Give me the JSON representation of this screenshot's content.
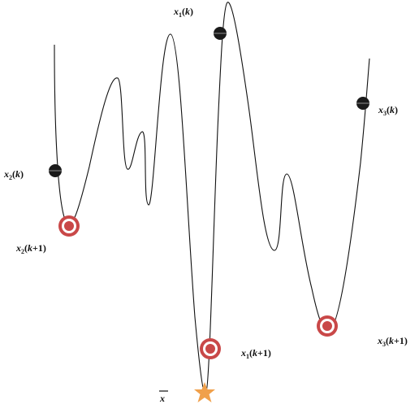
{
  "colors": {
    "curve": "#111111",
    "current_point": "#1a1a1a",
    "target_ring": "#c94848",
    "minimum_star": "#f0a04b"
  },
  "labels": {
    "x2k": {
      "base": "x",
      "sub": "2",
      "arg": "k"
    },
    "x1k": {
      "base": "x",
      "sub": "1",
      "arg": "k"
    },
    "x3k": {
      "base": "x",
      "sub": "3",
      "arg": "k"
    },
    "x2k1": {
      "base": "x",
      "sub": "2",
      "arg": "k",
      "suffix": "+1"
    },
    "x1k1": {
      "base": "x",
      "sub": "1",
      "arg": "k",
      "suffix": "+1"
    },
    "x3k1": {
      "base": "x",
      "sub": "3",
      "arg": "k",
      "suffix": "+1"
    },
    "xbar": {
      "base": "x"
    }
  },
  "icons": {
    "current_point": "black-sphere-icon",
    "next_point": "target-ring-icon",
    "global_minimum": "star-icon"
  }
}
